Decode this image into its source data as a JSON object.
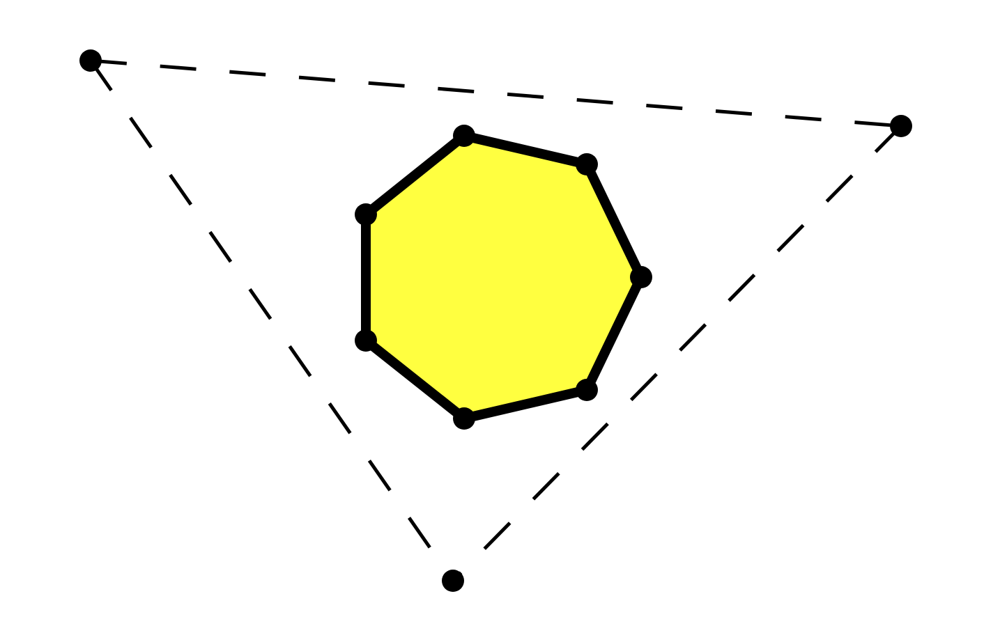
{
  "diagram": {
    "shapes": [
      {
        "kind": "triangle",
        "style": "dashed",
        "vertex_count": 3
      },
      {
        "kind": "heptagon",
        "style": "solid-filled",
        "vertex_count": 7
      }
    ],
    "colors": {
      "background": "#ffffff",
      "stroke": "#000000",
      "heptagon_fill": "#ffff40",
      "vertex_dot": "#000000"
    },
    "labels": []
  }
}
